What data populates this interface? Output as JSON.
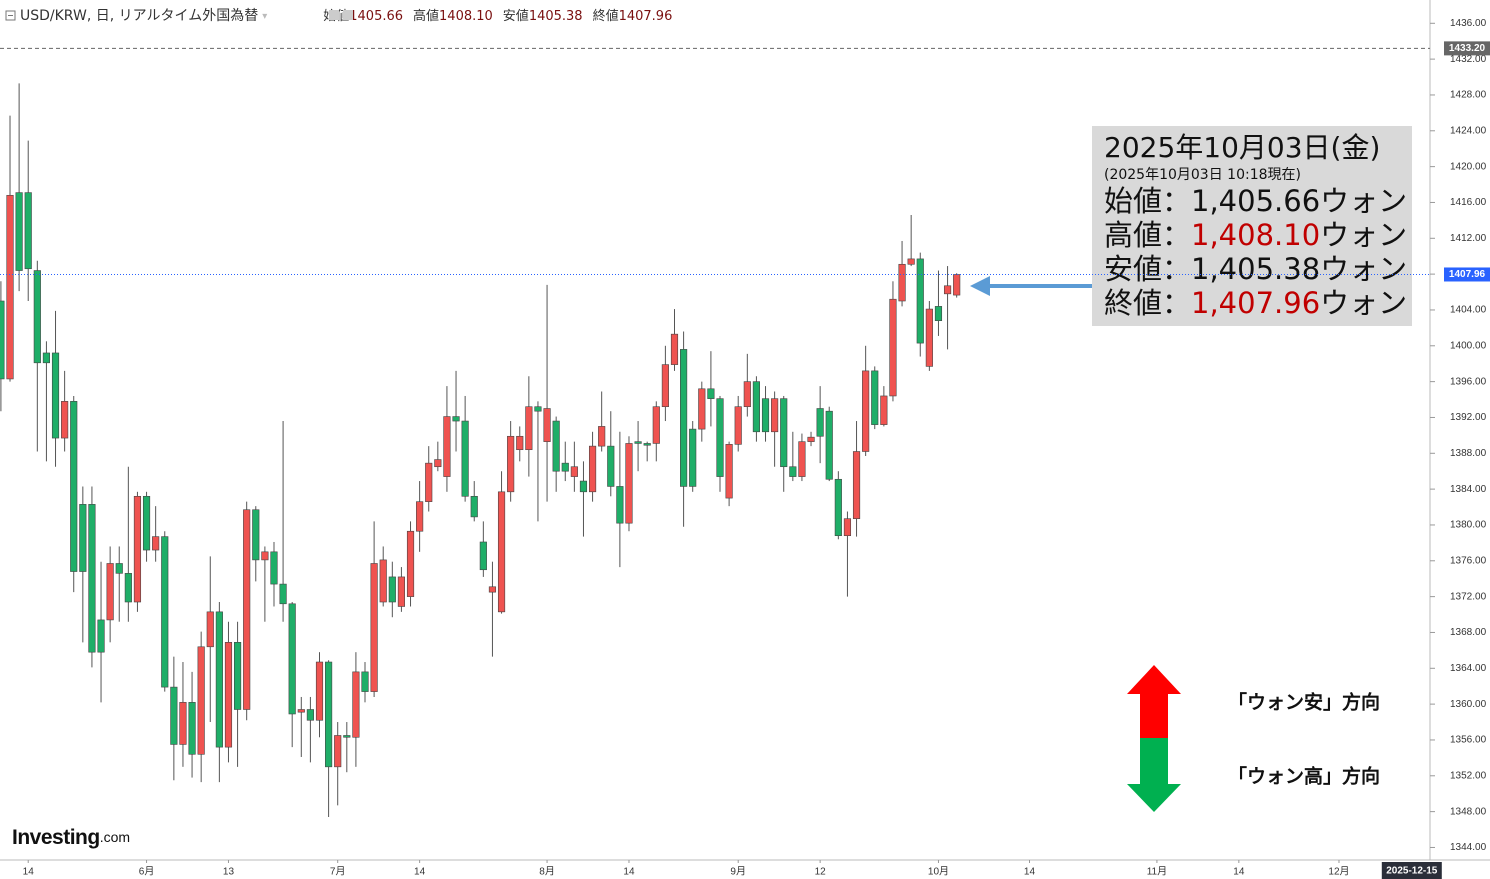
{
  "header": {
    "symbol": "USD/KRW, 日, リアルタイム外国為替",
    "ohlc": [
      {
        "label": "始値",
        "value": "1405.66"
      },
      {
        "label": "高値",
        "value": "1408.10"
      },
      {
        "label": "安値",
        "value": "1405.38"
      },
      {
        "label": "終値",
        "value": "1407.96"
      }
    ]
  },
  "info_box": {
    "title": "2025年10月03日(金)",
    "subtitle": "(2025年10月03日 10:18現在)",
    "lines": [
      {
        "label": "始値：",
        "value": "1,405.66",
        "unit": "ウォン",
        "color": "#111111"
      },
      {
        "label": "高値：",
        "value": "1,408.10",
        "unit": "ウォン",
        "color": "#c00000"
      },
      {
        "label": "安値：",
        "value": "1,405.38",
        "unit": "ウォン",
        "color": "#111111"
      },
      {
        "label": "終値：",
        "value": "1,407.96",
        "unit": "ウォン",
        "color": "#c00000"
      }
    ]
  },
  "annotations": {
    "up": "「ウォン安」方向",
    "down": "「ウォン高」方向"
  },
  "logo": {
    "brand": "Investing",
    "suffix": ".com"
  },
  "chart_data": {
    "type": "candlestick",
    "up_color": "#ef5350",
    "down_color": "#1fae68",
    "open": [
      1405.0,
      1396.3,
      1417.1,
      1417.1,
      1408.4,
      1399.2,
      1399.2,
      1389.7,
      1393.8,
      1382.3,
      1382.3,
      1369.4,
      1369.4,
      1375.7,
      1374.6,
      1371.4,
      1383.2,
      1377.2,
      1378.7,
      1361.9,
      1355.5,
      1360.2,
      1354.4,
      1366.4,
      1370.3,
      1355.2,
      1366.9,
      1359.4,
      1381.7,
      1376.1,
      1377.0,
      1373.4,
      1371.2,
      1359.1,
      1359.4,
      1358.2,
      1364.7,
      1353.0,
      1356.5,
      1356.3,
      1363.6,
      1361.4,
      1371.4,
      1374.2,
      1370.9,
      1372.0,
      1379.3,
      1382.6,
      1386.5,
      1385.4,
      1392.1,
      1391.6,
      1383.2,
      1378.1,
      1372.5,
      1370.3,
      1383.7,
      1388.4,
      1388.4,
      1393.2,
      1389.3,
      1391.6,
      1386.9,
      1385.4,
      1384.9,
      1383.7,
      1388.8,
      1388.8,
      1384.3,
      1380.2,
      1389.3,
      1389.1,
      1389.1,
      1393.2,
      1397.9,
      1399.6,
      1390.7,
      1390.7,
      1395.2,
      1394.1,
      1383.0,
      1389.0,
      1393.2,
      1396.0,
      1394.1,
      1390.4,
      1394.1,
      1386.5,
      1385.4,
      1389.3,
      1393.0,
      1392.7,
      1385.1,
      1378.8,
      1380.7,
      1388.2,
      1397.2,
      1391.2,
      1394.4,
      1405.0,
      1409.1,
      1409.7,
      1397.7,
      1404.4,
      1405.8,
      1405.66
    ],
    "high": [
      1407.2,
      1425.7,
      1429.3,
      1422.9,
      1409.5,
      1400.5,
      1403.9,
      1397.2,
      1394.4,
      1384.3,
      1384.3,
      1375.9,
      1377.6,
      1377.6,
      1386.5,
      1383.7,
      1383.7,
      1382.1,
      1379.3,
      1365.3,
      1364.7,
      1363.6,
      1368.1,
      1376.5,
      1371.4,
      1369.2,
      1369.2,
      1382.6,
      1382.1,
      1377.6,
      1378.1,
      1391.6,
      1371.4,
      1360.8,
      1360.8,
      1365.8,
      1364.9,
      1358.0,
      1358.0,
      1365.8,
      1364.7,
      1380.4,
      1377.6,
      1375.9,
      1375.3,
      1380.4,
      1384.9,
      1388.8,
      1389.3,
      1395.5,
      1397.2,
      1394.4,
      1384.9,
      1380.4,
      1375.9,
      1386.0,
      1391.6,
      1391.0,
      1396.6,
      1393.8,
      1406.8,
      1392.1,
      1389.3,
      1389.3,
      1387.1,
      1390.4,
      1394.9,
      1392.7,
      1390.4,
      1389.9,
      1391.6,
      1389.3,
      1393.8,
      1400.0,
      1404.1,
      1401.6,
      1391.6,
      1396.0,
      1399.4,
      1394.4,
      1389.3,
      1394.4,
      1399.1,
      1396.6,
      1395.5,
      1394.9,
      1394.4,
      1390.4,
      1390.2,
      1390.4,
      1395.5,
      1393.2,
      1386.0,
      1381.5,
      1391.6,
      1400.0,
      1397.7,
      1395.5,
      1407.2,
      1411.7,
      1414.6,
      1410.4,
      1405.0,
      1408.4,
      1408.9,
      1408.1
    ],
    "low": [
      1392.7,
      1396.0,
      1406.1,
      1405.0,
      1388.2,
      1387.1,
      1386.5,
      1388.2,
      1372.5,
      1366.9,
      1364.1,
      1360.2,
      1366.9,
      1369.2,
      1369.2,
      1370.3,
      1375.9,
      1375.9,
      1361.4,
      1351.5,
      1353.0,
      1351.8,
      1351.3,
      1358.0,
      1351.3,
      1353.5,
      1353.0,
      1358.2,
      1373.7,
      1369.2,
      1370.9,
      1369.2,
      1355.2,
      1354.1,
      1353.5,
      1356.3,
      1347.4,
      1348.7,
      1352.4,
      1353.0,
      1360.2,
      1360.8,
      1370.9,
      1369.7,
      1370.3,
      1370.9,
      1377.0,
      1381.5,
      1386.0,
      1383.7,
      1388.2,
      1382.6,
      1380.4,
      1374.2,
      1365.3,
      1370.1,
      1382.6,
      1387.1,
      1385.4,
      1380.4,
      1382.6,
      1383.7,
      1384.9,
      1383.7,
      1378.7,
      1382.6,
      1388.2,
      1383.2,
      1375.3,
      1379.3,
      1386.0,
      1387.1,
      1387.1,
      1391.6,
      1397.2,
      1379.8,
      1383.7,
      1389.3,
      1391.0,
      1383.7,
      1382.1,
      1388.2,
      1392.1,
      1389.3,
      1389.3,
      1386.5,
      1383.7,
      1384.9,
      1384.9,
      1388.8,
      1386.9,
      1384.9,
      1378.4,
      1372.0,
      1378.7,
      1387.7,
      1390.7,
      1391.0,
      1393.8,
      1404.4,
      1408.9,
      1398.8,
      1397.2,
      1401.1,
      1399.6,
      1405.38
    ],
    "close": [
      1396.3,
      1416.8,
      1408.4,
      1408.6,
      1398.1,
      1398.1,
      1389.7,
      1393.8,
      1374.8,
      1374.8,
      1365.8,
      1365.8,
      1375.7,
      1374.6,
      1371.4,
      1383.2,
      1377.2,
      1378.7,
      1361.9,
      1355.5,
      1360.2,
      1354.4,
      1366.4,
      1370.3,
      1355.2,
      1366.9,
      1359.4,
      1381.7,
      1376.1,
      1377.0,
      1373.4,
      1371.2,
      1358.9,
      1359.4,
      1358.2,
      1364.7,
      1353.0,
      1356.5,
      1356.3,
      1363.6,
      1361.4,
      1375.7,
      1376.1,
      1371.4,
      1374.2,
      1379.3,
      1382.6,
      1386.9,
      1387.3,
      1392.1,
      1391.6,
      1383.2,
      1380.9,
      1375.0,
      1373.1,
      1383.7,
      1389.9,
      1389.9,
      1393.2,
      1392.7,
      1393.0,
      1386.0,
      1386.0,
      1386.5,
      1383.7,
      1388.8,
      1391.0,
      1384.3,
      1380.2,
      1389.1,
      1389.1,
      1388.9,
      1393.2,
      1397.9,
      1401.3,
      1384.3,
      1384.3,
      1395.2,
      1394.1,
      1385.4,
      1389.0,
      1393.2,
      1396.0,
      1390.4,
      1390.4,
      1394.1,
      1386.5,
      1385.4,
      1389.3,
      1389.8,
      1389.9,
      1385.1,
      1378.8,
      1380.7,
      1388.2,
      1397.2,
      1391.2,
      1394.4,
      1405.2,
      1409.1,
      1409.7,
      1400.3,
      1404.1,
      1402.8,
      1406.7,
      1407.96
    ],
    "xlim": [
      -0.1,
      157
    ],
    "xticks": [
      {
        "value": 3,
        "label": "14"
      },
      {
        "value": 16,
        "label": "6月"
      },
      {
        "value": 25,
        "label": "13"
      },
      {
        "value": 37,
        "label": "7月"
      },
      {
        "value": 46,
        "label": "14"
      },
      {
        "value": 60,
        "label": "8月"
      },
      {
        "value": 69,
        "label": "14"
      },
      {
        "value": 81,
        "label": "9月"
      },
      {
        "value": 90,
        "label": "12"
      },
      {
        "value": 103,
        "label": "10月"
      },
      {
        "value": 113,
        "label": "14"
      },
      {
        "value": 127,
        "label": "11月"
      },
      {
        "value": 136,
        "label": "14"
      },
      {
        "value": 147,
        "label": "12月"
      }
    ],
    "x_marker": {
      "value": 155,
      "label": "2025-12-15"
    },
    "ylim": [
      1342.6,
      1438.6
    ],
    "yticks": [
      {
        "value": 1344,
        "label": "1344.00"
      },
      {
        "value": 1348,
        "label": "1348.00"
      },
      {
        "value": 1352,
        "label": "1352.00"
      },
      {
        "value": 1356,
        "label": "1356.00"
      },
      {
        "value": 1360,
        "label": "1360.00"
      },
      {
        "value": 1364,
        "label": "1364.00"
      },
      {
        "value": 1368,
        "label": "1368.00"
      },
      {
        "value": 1372,
        "label": "1372.00"
      },
      {
        "value": 1376,
        "label": "1376.00"
      },
      {
        "value": 1380,
        "label": "1380.00"
      },
      {
        "value": 1384,
        "label": "1384.00"
      },
      {
        "value": 1388,
        "label": "1388.00"
      },
      {
        "value": 1392,
        "label": "1392.00"
      },
      {
        "value": 1396,
        "label": "1396.00"
      },
      {
        "value": 1400,
        "label": "1400.00"
      },
      {
        "value": 1404,
        "label": "1404.00"
      },
      {
        "value": 1408,
        "label": "1408.00"
      },
      {
        "value": 1412,
        "label": "1412.00"
      },
      {
        "value": 1416,
        "label": "1416.00"
      },
      {
        "value": 1420,
        "label": "1420.00"
      },
      {
        "value": 1424,
        "label": "1424.00"
      },
      {
        "value": 1428,
        "label": "1428.00"
      },
      {
        "value": 1432,
        "label": "1432.00"
      },
      {
        "value": 1436,
        "label": "1436.00"
      }
    ],
    "price_lines": [
      {
        "value": 1433.2,
        "label": "1433.20",
        "color": "#666666",
        "dash": "4,3"
      },
      {
        "value": 1407.96,
        "label": "1407.96",
        "color": "#2962ff",
        "dash": "1,2"
      }
    ],
    "grid": false
  }
}
